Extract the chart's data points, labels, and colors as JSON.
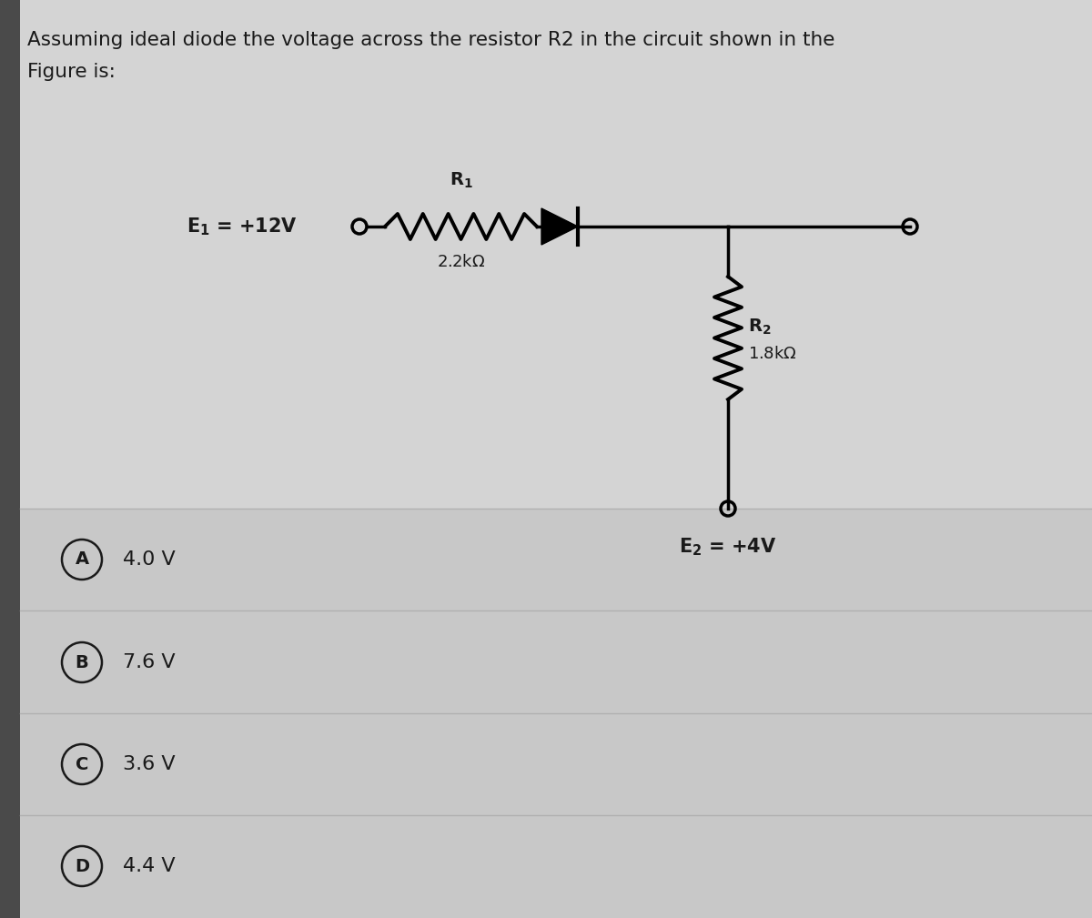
{
  "title_line1": "Assuming ideal diode the voltage across the resistor R2 in the circuit shown in the",
  "title_line2": "Figure is:",
  "title_fontsize": 15.5,
  "bg_color_top": "#cecece",
  "bg_color_bottom": "#c8c8c8",
  "options": [
    {
      "label": "A",
      "text": "4.0 V"
    },
    {
      "label": "B",
      "text": "7.6 V"
    },
    {
      "label": "C",
      "text": "3.6 V"
    },
    {
      "label": "D",
      "text": "4.4 V"
    }
  ],
  "line_color": "#000000",
  "text_color": "#1a1a1a",
  "sep_color": "#b0b0b0",
  "circuit_panel_color": "#c0c0c0",
  "figsize": [
    12.0,
    10.09
  ],
  "dpi": 100
}
